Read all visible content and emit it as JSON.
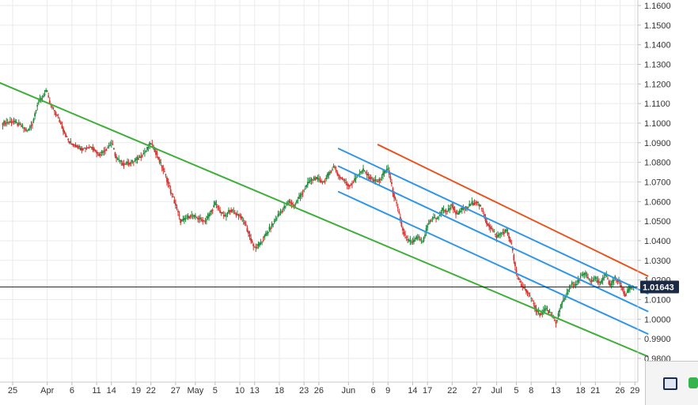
{
  "chart_data": {
    "type": "candlestick",
    "title": "",
    "xlabel": "",
    "ylabel": "",
    "grid": true,
    "y_range": [
      0.975,
      1.165
    ],
    "y_ticks": [
      "1.1600",
      "1.1500",
      "1.1400",
      "1.1300",
      "1.1200",
      "1.1100",
      "1.1000",
      "1.0900",
      "1.0800",
      "1.0700",
      "1.0600",
      "1.0500",
      "1.0400",
      "1.0300",
      "1.0200",
      "1.0100",
      "1.0000",
      "0.9900",
      "0.9800"
    ],
    "x_ticks": [
      {
        "label": "25",
        "day": 0
      },
      {
        "label": "Apr",
        "day": 7
      },
      {
        "label": "6",
        "day": 12
      },
      {
        "label": "11",
        "day": 17
      },
      {
        "label": "14",
        "day": 20
      },
      {
        "label": "19",
        "day": 25
      },
      {
        "label": "22",
        "day": 28
      },
      {
        "label": "27",
        "day": 33
      },
      {
        "label": "May",
        "day": 37
      },
      {
        "label": "5",
        "day": 41
      },
      {
        "label": "10",
        "day": 46
      },
      {
        "label": "13",
        "day": 49
      },
      {
        "label": "18",
        "day": 54
      },
      {
        "label": "23",
        "day": 59
      },
      {
        "label": "26",
        "day": 62
      },
      {
        "label": "Jun",
        "day": 68
      },
      {
        "label": "6",
        "day": 73
      },
      {
        "label": "9",
        "day": 76
      },
      {
        "label": "14",
        "day": 81
      },
      {
        "label": "17",
        "day": 84
      },
      {
        "label": "22",
        "day": 89
      },
      {
        "label": "27",
        "day": 94
      },
      {
        "label": "Jul",
        "day": 98
      },
      {
        "label": "5",
        "day": 102
      },
      {
        "label": "8",
        "day": 105
      },
      {
        "label": "13",
        "day": 110
      },
      {
        "label": "18",
        "day": 115
      },
      {
        "label": "21",
        "day": 118
      },
      {
        "label": "26",
        "day": 123
      },
      {
        "label": "29",
        "day": 126
      }
    ],
    "last_price": "1.01643",
    "last_value": 1.01643,
    "price_points": [
      [
        -2,
        1.1
      ],
      [
        0,
        1.101
      ],
      [
        2,
        1.098
      ],
      [
        3,
        1.096
      ],
      [
        4,
        1.1
      ],
      [
        5,
        1.11
      ],
      [
        6,
        1.113
      ],
      [
        6.8,
        1.117
      ],
      [
        7.5,
        1.11
      ],
      [
        8.5,
        1.106
      ],
      [
        9.5,
        1.101
      ],
      [
        10.5,
        1.095
      ],
      [
        11.5,
        1.09
      ],
      [
        12.5,
        1.089
      ],
      [
        14,
        1.087
      ],
      [
        16,
        1.088
      ],
      [
        17.5,
        1.084
      ],
      [
        19,
        1.087
      ],
      [
        20,
        1.09
      ],
      [
        21,
        1.082
      ],
      [
        22.5,
        1.079
      ],
      [
        24,
        1.08
      ],
      [
        25.5,
        1.082
      ],
      [
        27,
        1.086
      ],
      [
        28,
        1.09
      ],
      [
        29,
        1.085
      ],
      [
        30,
        1.079
      ],
      [
        31,
        1.073
      ],
      [
        32,
        1.065
      ],
      [
        33,
        1.058
      ],
      [
        34,
        1.05
      ],
      [
        35,
        1.051
      ],
      [
        36,
        1.053
      ],
      [
        37,
        1.052
      ],
      [
        38,
        1.051
      ],
      [
        39,
        1.05
      ],
      [
        40,
        1.054
      ],
      [
        41,
        1.059
      ],
      [
        42,
        1.055
      ],
      [
        43,
        1.052
      ],
      [
        44,
        1.056
      ],
      [
        45,
        1.054
      ],
      [
        46,
        1.053
      ],
      [
        47,
        1.049
      ],
      [
        48,
        1.042
      ],
      [
        49,
        1.036
      ],
      [
        50,
        1.038
      ],
      [
        51,
        1.042
      ],
      [
        52,
        1.046
      ],
      [
        53,
        1.05
      ],
      [
        54,
        1.054
      ],
      [
        55,
        1.057
      ],
      [
        56,
        1.06
      ],
      [
        57,
        1.058
      ],
      [
        58,
        1.062
      ],
      [
        59,
        1.066
      ],
      [
        60,
        1.07
      ],
      [
        61,
        1.072
      ],
      [
        62,
        1.071
      ],
      [
        63,
        1.07
      ],
      [
        64,
        1.074
      ],
      [
        65,
        1.078
      ],
      [
        66,
        1.073
      ],
      [
        67,
        1.071
      ],
      [
        68,
        1.068
      ],
      [
        69,
        1.07
      ],
      [
        70,
        1.074
      ],
      [
        71,
        1.076
      ],
      [
        72,
        1.073
      ],
      [
        73,
        1.071
      ],
      [
        74,
        1.07
      ],
      [
        75,
        1.074
      ],
      [
        76,
        1.077
      ],
      [
        77,
        1.065
      ],
      [
        78,
        1.056
      ],
      [
        79,
        1.045
      ],
      [
        80,
        1.04
      ],
      [
        81,
        1.039
      ],
      [
        82,
        1.042
      ],
      [
        83,
        1.039
      ],
      [
        84,
        1.048
      ],
      [
        85,
        1.052
      ],
      [
        86,
        1.051
      ],
      [
        87,
        1.056
      ],
      [
        88,
        1.055
      ],
      [
        89,
        1.058
      ],
      [
        90,
        1.053
      ],
      [
        91,
        1.056
      ],
      [
        92,
        1.057
      ],
      [
        93,
        1.059
      ],
      [
        94,
        1.06
      ],
      [
        95,
        1.056
      ],
      [
        96,
        1.049
      ],
      [
        97,
        1.046
      ],
      [
        98,
        1.042
      ],
      [
        99,
        1.044
      ],
      [
        100,
        1.045
      ],
      [
        101,
        1.038
      ],
      [
        102,
        1.023
      ],
      [
        103,
        1.017
      ],
      [
        104,
        1.015
      ],
      [
        105,
        1.01
      ],
      [
        106,
        1.005
      ],
      [
        107,
        1.002
      ],
      [
        108,
        1.006
      ],
      [
        109,
        1.002
      ],
      [
        110,
        0.998
      ],
      [
        111,
        1.007
      ],
      [
        112,
        1.012
      ],
      [
        113,
        1.018
      ],
      [
        114,
        1.017
      ],
      [
        115,
        1.022
      ],
      [
        116,
        1.023
      ],
      [
        117,
        1.019
      ],
      [
        118,
        1.021
      ],
      [
        119,
        1.018
      ],
      [
        120,
        1.023
      ],
      [
        121,
        1.017
      ],
      [
        122,
        1.021
      ],
      [
        123,
        1.018
      ],
      [
        124,
        1.012
      ],
      [
        125,
        1.016
      ],
      [
        126,
        1.0164
      ]
    ],
    "trend_lines": [
      {
        "name": "",
        "color": "#3fae3a",
        "from": [
          -3,
          1.121
        ],
        "to": [
          128.6,
          0.981
        ]
      },
      {
        "name": "",
        "color": "#e8531c",
        "from": [
          74,
          1.089
        ],
        "to": [
          128.6,
          1.022
        ]
      },
      {
        "name": "",
        "color": "#2e95e8",
        "from": [
          66,
          1.087
        ],
        "to": [
          128.6,
          1.013
        ]
      },
      {
        "name": "",
        "color": "#2e95e8",
        "from": [
          66,
          1.078
        ],
        "to": [
          128.6,
          1.004
        ]
      },
      {
        "name": "",
        "color": "#2e95e8",
        "from": [
          66,
          1.065
        ],
        "to": [
          128.6,
          0.9925
        ]
      }
    ],
    "colors": {
      "up_candle": "#1f8a3a",
      "down_candle": "#d2322d",
      "grid": "#eaeaea",
      "axis_text": "#333333",
      "price_line": "#1b2a44",
      "price_label_bg": "#1b2a44",
      "price_label_text": "#ffffff"
    }
  },
  "corner_panel": {
    "icons": [
      "monitor-icon",
      "green-app-icon"
    ]
  }
}
